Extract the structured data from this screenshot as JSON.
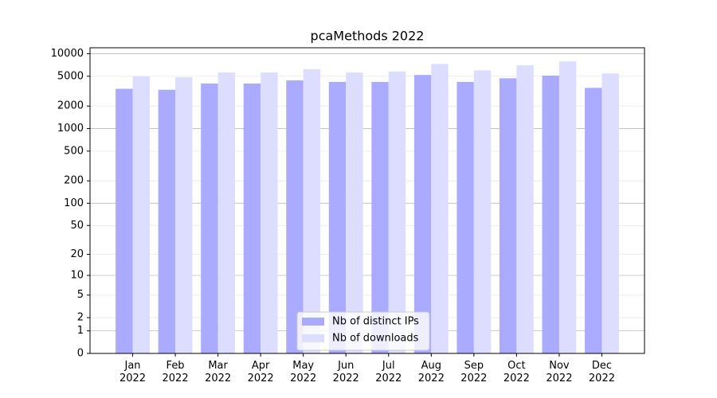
{
  "chart_data": {
    "type": "bar",
    "title": "pcaMethods 2022",
    "categories": [
      "Jan\n2022",
      "Feb\n2022",
      "Mar\n2022",
      "Apr\n2022",
      "May\n2022",
      "Jun\n2022",
      "Jul\n2022",
      "Aug\n2022",
      "Sep\n2022",
      "Oct\n2022",
      "Nov\n2022",
      "Dec\n2022"
    ],
    "series": [
      {
        "name": "Nb of distinct IPs",
        "color": "#aaaaff",
        "values": [
          3400,
          3300,
          4000,
          4000,
          4400,
          4200,
          4200,
          5200,
          4200,
          4700,
          5100,
          3500
        ]
      },
      {
        "name": "Nb of downloads",
        "color": "#ddddff",
        "values": [
          5000,
          4850,
          5600,
          5600,
          6200,
          5600,
          5800,
          7300,
          6000,
          7000,
          7900,
          5450
        ]
      }
    ],
    "yscale": "log1p",
    "ylim": [
      0,
      12000
    ],
    "yticks": [
      0,
      1,
      2,
      5,
      10,
      20,
      50,
      100,
      200,
      500,
      1000,
      2000,
      5000,
      10000
    ],
    "grid": true,
    "legend": "lower center"
  }
}
